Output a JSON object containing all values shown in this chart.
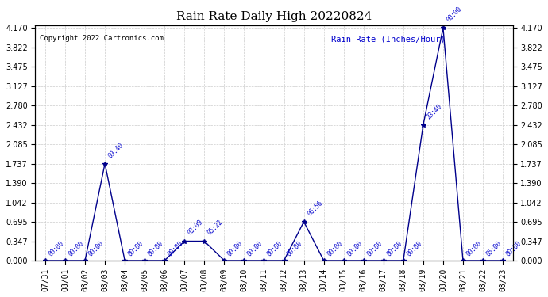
{
  "title": "Rain Rate Daily High 20220824",
  "copyright": "Copyright 2022 Cartronics.com",
  "ylabel": "Rain Rate (Inches/Hour)",
  "bg_color": "#ffffff",
  "plot_bg_color": "#ffffff",
  "grid_color": "#cccccc",
  "line_color": "#00008B",
  "text_color": "#0000CD",
  "title_color": "#000000",
  "yticks": [
    0.0,
    0.347,
    0.695,
    1.042,
    1.39,
    1.737,
    2.085,
    2.432,
    2.78,
    3.127,
    3.475,
    3.822,
    4.17
  ],
  "x_dates": [
    "07/31",
    "08/01",
    "08/02",
    "08/03",
    "08/04",
    "08/05",
    "08/06",
    "08/07",
    "08/08",
    "08/09",
    "08/10",
    "08/11",
    "08/12",
    "08/13",
    "08/14",
    "08/15",
    "08/16",
    "08/17",
    "08/18",
    "08/19",
    "08/20",
    "08/21",
    "08/22",
    "08/23"
  ],
  "y_values": [
    0.0,
    0.0,
    0.0,
    1.737,
    0.0,
    0.0,
    0.0,
    0.347,
    0.347,
    0.0,
    0.0,
    0.0,
    0.0,
    0.695,
    0.0,
    0.0,
    0.0,
    0.0,
    0.0,
    2.432,
    4.17,
    0.0,
    0.0,
    0.0
  ],
  "point_labels": [
    "00:00",
    "00:00",
    "00:00",
    "09:40",
    "00:00",
    "00:00",
    "00:00",
    "03:09",
    "05:22",
    "00:00",
    "00:00",
    "00:00",
    "00:00",
    "06:56",
    "00:00",
    "00:00",
    "00:00",
    "00:00",
    "00:00",
    "23:40",
    "00:00",
    "00:00",
    "05:00",
    "00:00"
  ],
  "ylim": [
    0,
    4.17
  ],
  "marker_size": 4
}
